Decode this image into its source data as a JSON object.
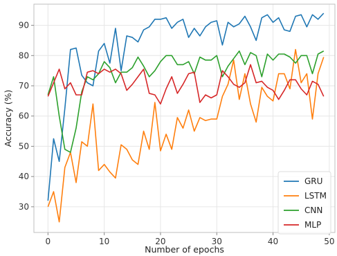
{
  "chart_data": {
    "type": "line",
    "title": "",
    "xlabel": "Number of epochs",
    "ylabel": "Accuracy (%)",
    "xlim": [
      -2.5,
      51
    ],
    "ylim": [
      21.5,
      97
    ],
    "xticks": [
      0,
      10,
      20,
      30,
      40,
      50
    ],
    "yticks": [
      30,
      40,
      50,
      60,
      70,
      80,
      90
    ],
    "grid": true,
    "legend_position": "lower-right",
    "x": [
      0,
      1,
      2,
      3,
      4,
      5,
      6,
      7,
      8,
      9,
      10,
      11,
      12,
      13,
      14,
      15,
      16,
      17,
      18,
      19,
      20,
      21,
      22,
      23,
      24,
      25,
      26,
      27,
      28,
      29,
      30,
      31,
      32,
      33,
      34,
      35,
      36,
      37,
      38,
      39,
      40,
      41,
      42,
      43,
      44,
      45,
      46,
      47,
      48,
      49
    ],
    "series": [
      {
        "name": "GRU",
        "color": "#1f77b4",
        "values": [
          32,
          52.5,
          45,
          62.5,
          82,
          82.5,
          73.5,
          71,
          70,
          81.5,
          84,
          77.5,
          89,
          75,
          86.5,
          86,
          84.5,
          88.5,
          89.5,
          92,
          92,
          92.5,
          89,
          91,
          92,
          86,
          89,
          86.5,
          89.5,
          91,
          91.5,
          83.5,
          91,
          89.5,
          90.5,
          93,
          89.5,
          85,
          92.5,
          93.5,
          91,
          92.5,
          88.5,
          88,
          93,
          93.5,
          89.5,
          93.5,
          92,
          94
        ]
      },
      {
        "name": "LSTM",
        "color": "#ff7f0e",
        "values": [
          30,
          35,
          25,
          43,
          48,
          38,
          51.5,
          50,
          64,
          42,
          44,
          41.5,
          39.5,
          50.5,
          49,
          45.5,
          44,
          55,
          49,
          64.5,
          48.5,
          54,
          49,
          59.5,
          56,
          62,
          55,
          59.5,
          58.5,
          59,
          59,
          66.5,
          70.5,
          78.5,
          65.5,
          74,
          64,
          58,
          69.5,
          66.5,
          65,
          74,
          74,
          69,
          82,
          71,
          74,
          59,
          74,
          79.5
        ]
      },
      {
        "name": "CNN",
        "color": "#2ca02c",
        "values": [
          67,
          73,
          60,
          49,
          48,
          56,
          68,
          73,
          72,
          74,
          78,
          76,
          71,
          74.5,
          74.5,
          76,
          79.5,
          76.5,
          73,
          75,
          78,
          80,
          80,
          77,
          77,
          78,
          74,
          79.5,
          78.5,
          78.5,
          80,
          73,
          76.5,
          79,
          81.5,
          77,
          81,
          80,
          73,
          80.5,
          78.5,
          80.5,
          80.5,
          79.5,
          77.5,
          80,
          80,
          74,
          80.5,
          81.5
        ]
      },
      {
        "name": "MLP",
        "color": "#d62728",
        "values": [
          66.5,
          71,
          75.5,
          69,
          71,
          67,
          67,
          74.5,
          75,
          74,
          75.5,
          74.5,
          75.5,
          74,
          68.5,
          70.5,
          73,
          75.5,
          67.5,
          67,
          64,
          69,
          73,
          67.5,
          70.5,
          74,
          74.5,
          64.5,
          67,
          66,
          67,
          75,
          73,
          70.5,
          69.5,
          71,
          77,
          71,
          71.5,
          69.5,
          68.5,
          65.5,
          68.5,
          72,
          72,
          69,
          67,
          71.5,
          70.5,
          66.5
        ]
      }
    ]
  }
}
